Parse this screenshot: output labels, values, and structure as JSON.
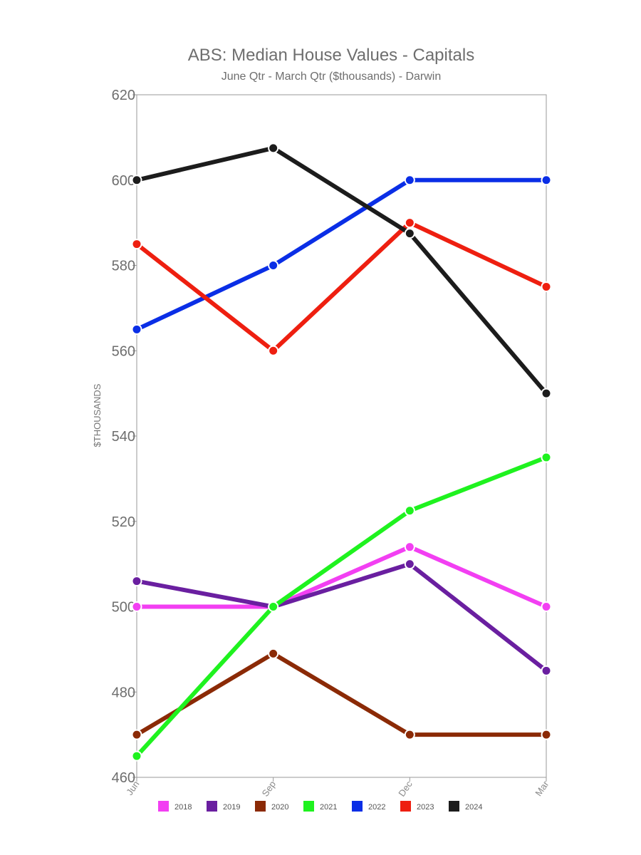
{
  "chart_data": {
    "type": "line",
    "title": "ABS: Median House Values - Capitals",
    "subtitle": "June Qtr - March Qtr ($thousands) - Darwin",
    "xlabel": "",
    "ylabel": "$THOUSANDS",
    "categories": [
      "Jun",
      "Sep",
      "Dec",
      "Mar"
    ],
    "ylim": [
      460,
      620
    ],
    "yticks": [
      460,
      480,
      500,
      520,
      540,
      560,
      580,
      600,
      620
    ],
    "grid": false,
    "legend_position": "bottom",
    "series": [
      {
        "name": "2018",
        "color": "#f23ff2",
        "values": [
          500,
          500,
          514,
          500
        ]
      },
      {
        "name": "2019",
        "color": "#6a1fa0",
        "values": [
          506,
          500,
          510,
          485
        ]
      },
      {
        "name": "2020",
        "color": "#8b2a06",
        "values": [
          470,
          489,
          470,
          470
        ]
      },
      {
        "name": "2021",
        "color": "#1ff21f",
        "values": [
          465,
          500,
          522.5,
          535
        ]
      },
      {
        "name": "2022",
        "color": "#0a2ee6",
        "values": [
          565,
          580,
          600,
          600
        ]
      },
      {
        "name": "2023",
        "color": "#ee1f10",
        "values": [
          585,
          560,
          590,
          575
        ]
      },
      {
        "name": "2024",
        "color": "#1c1c1c",
        "values": [
          600,
          607.5,
          587.5,
          550
        ]
      }
    ]
  }
}
